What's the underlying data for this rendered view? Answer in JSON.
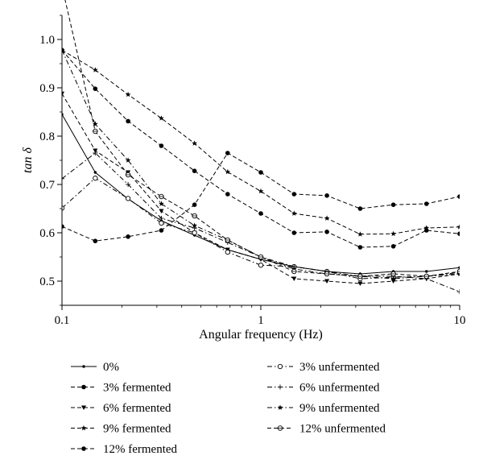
{
  "chart_data": {
    "type": "line",
    "title": "",
    "xlabel": "Angular frequency (Hz)",
    "ylabel": "tan δ",
    "x_scale": "log",
    "xlim": [
      0.1,
      10
    ],
    "ylim": [
      0.45,
      1.05
    ],
    "x_ticks": [
      0.1,
      1,
      10
    ],
    "x_tick_labels": [
      "0.1",
      "1",
      "10"
    ],
    "y_ticks": [
      0.5,
      0.6,
      0.7,
      0.8,
      0.9,
      1.0
    ],
    "y_tick_labels": [
      "0.5",
      "0.6",
      "0.7",
      "0.8",
      "0.9",
      "1.0"
    ],
    "grid": false,
    "legend_position": "bottom",
    "x": [
      0.1,
      0.147,
      0.215,
      0.316,
      0.464,
      0.681,
      1.0,
      1.47,
      2.15,
      3.16,
      4.64,
      6.81,
      10.0
    ],
    "series": [
      {
        "name": "0%",
        "dash": "solid",
        "marker": "small-dot",
        "values": [
          0.845,
          0.725,
          0.67,
          0.625,
          0.595,
          0.565,
          0.545,
          0.53,
          0.52,
          0.515,
          0.52,
          0.52,
          0.528
        ]
      },
      {
        "name": "3% fermented",
        "dash": "dashed",
        "marker": "filled-circle",
        "values": [
          0.613,
          0.583,
          0.592,
          0.605,
          0.658,
          0.765,
          0.725,
          0.68,
          0.677,
          0.65,
          0.658,
          0.66,
          0.675
        ]
      },
      {
        "name": "6% fermented",
        "dash": "dashed",
        "marker": "down-triangle",
        "values": [
          0.888,
          0.77,
          0.725,
          0.645,
          0.6,
          0.565,
          0.545,
          0.505,
          0.5,
          0.495,
          0.5,
          0.505,
          0.515
        ]
      },
      {
        "name": "9% fermented",
        "dash": "dashed",
        "marker": "star",
        "values": [
          0.978,
          0.937,
          0.886,
          0.837,
          0.785,
          0.726,
          0.686,
          0.64,
          0.63,
          0.597,
          0.598,
          0.61,
          0.612
        ]
      },
      {
        "name": "12% fermented",
        "dash": "dashed",
        "marker": "filled-circle",
        "values": [
          0.978,
          0.898,
          0.831,
          0.78,
          0.728,
          0.68,
          0.64,
          0.6,
          0.602,
          0.57,
          0.572,
          0.605,
          0.598
        ]
      },
      {
        "name": "3% unfermented",
        "dash": "dash-dot",
        "marker": "open-circle",
        "values": [
          0.651,
          0.713,
          0.671,
          0.62,
          0.6,
          0.56,
          0.533,
          0.53,
          0.52,
          0.505,
          0.508,
          0.51,
          0.518
        ]
      },
      {
        "name": "6% unfermented",
        "dash": "dash-dot",
        "marker": "plus",
        "values": [
          0.712,
          0.765,
          0.7,
          0.63,
          0.61,
          0.58,
          0.55,
          0.53,
          0.52,
          0.51,
          0.51,
          0.505,
          0.478
        ]
      },
      {
        "name": "9% unfermented",
        "dash": "dash-dot",
        "marker": "star",
        "values": [
          0.978,
          0.825,
          0.75,
          0.66,
          0.615,
          0.585,
          0.55,
          0.525,
          0.515,
          0.51,
          0.505,
          0.51,
          0.515
        ]
      },
      {
        "name": "12% unfermented",
        "dash": "dashed",
        "marker": "circle-plus",
        "values": [
          1.11,
          0.81,
          0.72,
          0.675,
          0.635,
          0.585,
          0.55,
          0.52,
          0.515,
          0.51,
          0.515,
          0.51,
          0.52
        ]
      }
    ]
  }
}
